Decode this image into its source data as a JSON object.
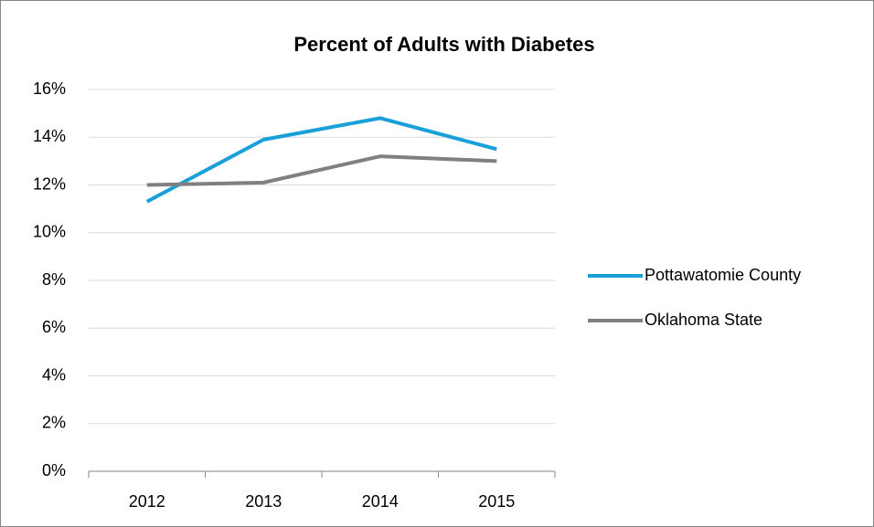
{
  "chart_data": {
    "type": "line",
    "title": "Percent of Adults with Diabetes",
    "categories": [
      "2012",
      "2013",
      "2014",
      "2015"
    ],
    "series": [
      {
        "name": "Pottawatomie County",
        "color": "#1aa0d8",
        "values": [
          11.3,
          13.9,
          14.8,
          13.5
        ]
      },
      {
        "name": "Oklahoma State",
        "color": "#808080",
        "values": [
          12.0,
          12.1,
          13.2,
          13.0
        ]
      }
    ],
    "ylim": [
      0,
      16
    ],
    "yticks": [
      {
        "value": 0,
        "label": "0%"
      },
      {
        "value": 2,
        "label": "2%"
      },
      {
        "value": 4,
        "label": "4%"
      },
      {
        "value": 6,
        "label": "6%"
      },
      {
        "value": 8,
        "label": "8%"
      },
      {
        "value": 10,
        "label": "10%"
      },
      {
        "value": 12,
        "label": "12%"
      },
      {
        "value": 14,
        "label": "14%"
      },
      {
        "value": 16,
        "label": "16%"
      }
    ],
    "grid": true,
    "legend": "right"
  }
}
